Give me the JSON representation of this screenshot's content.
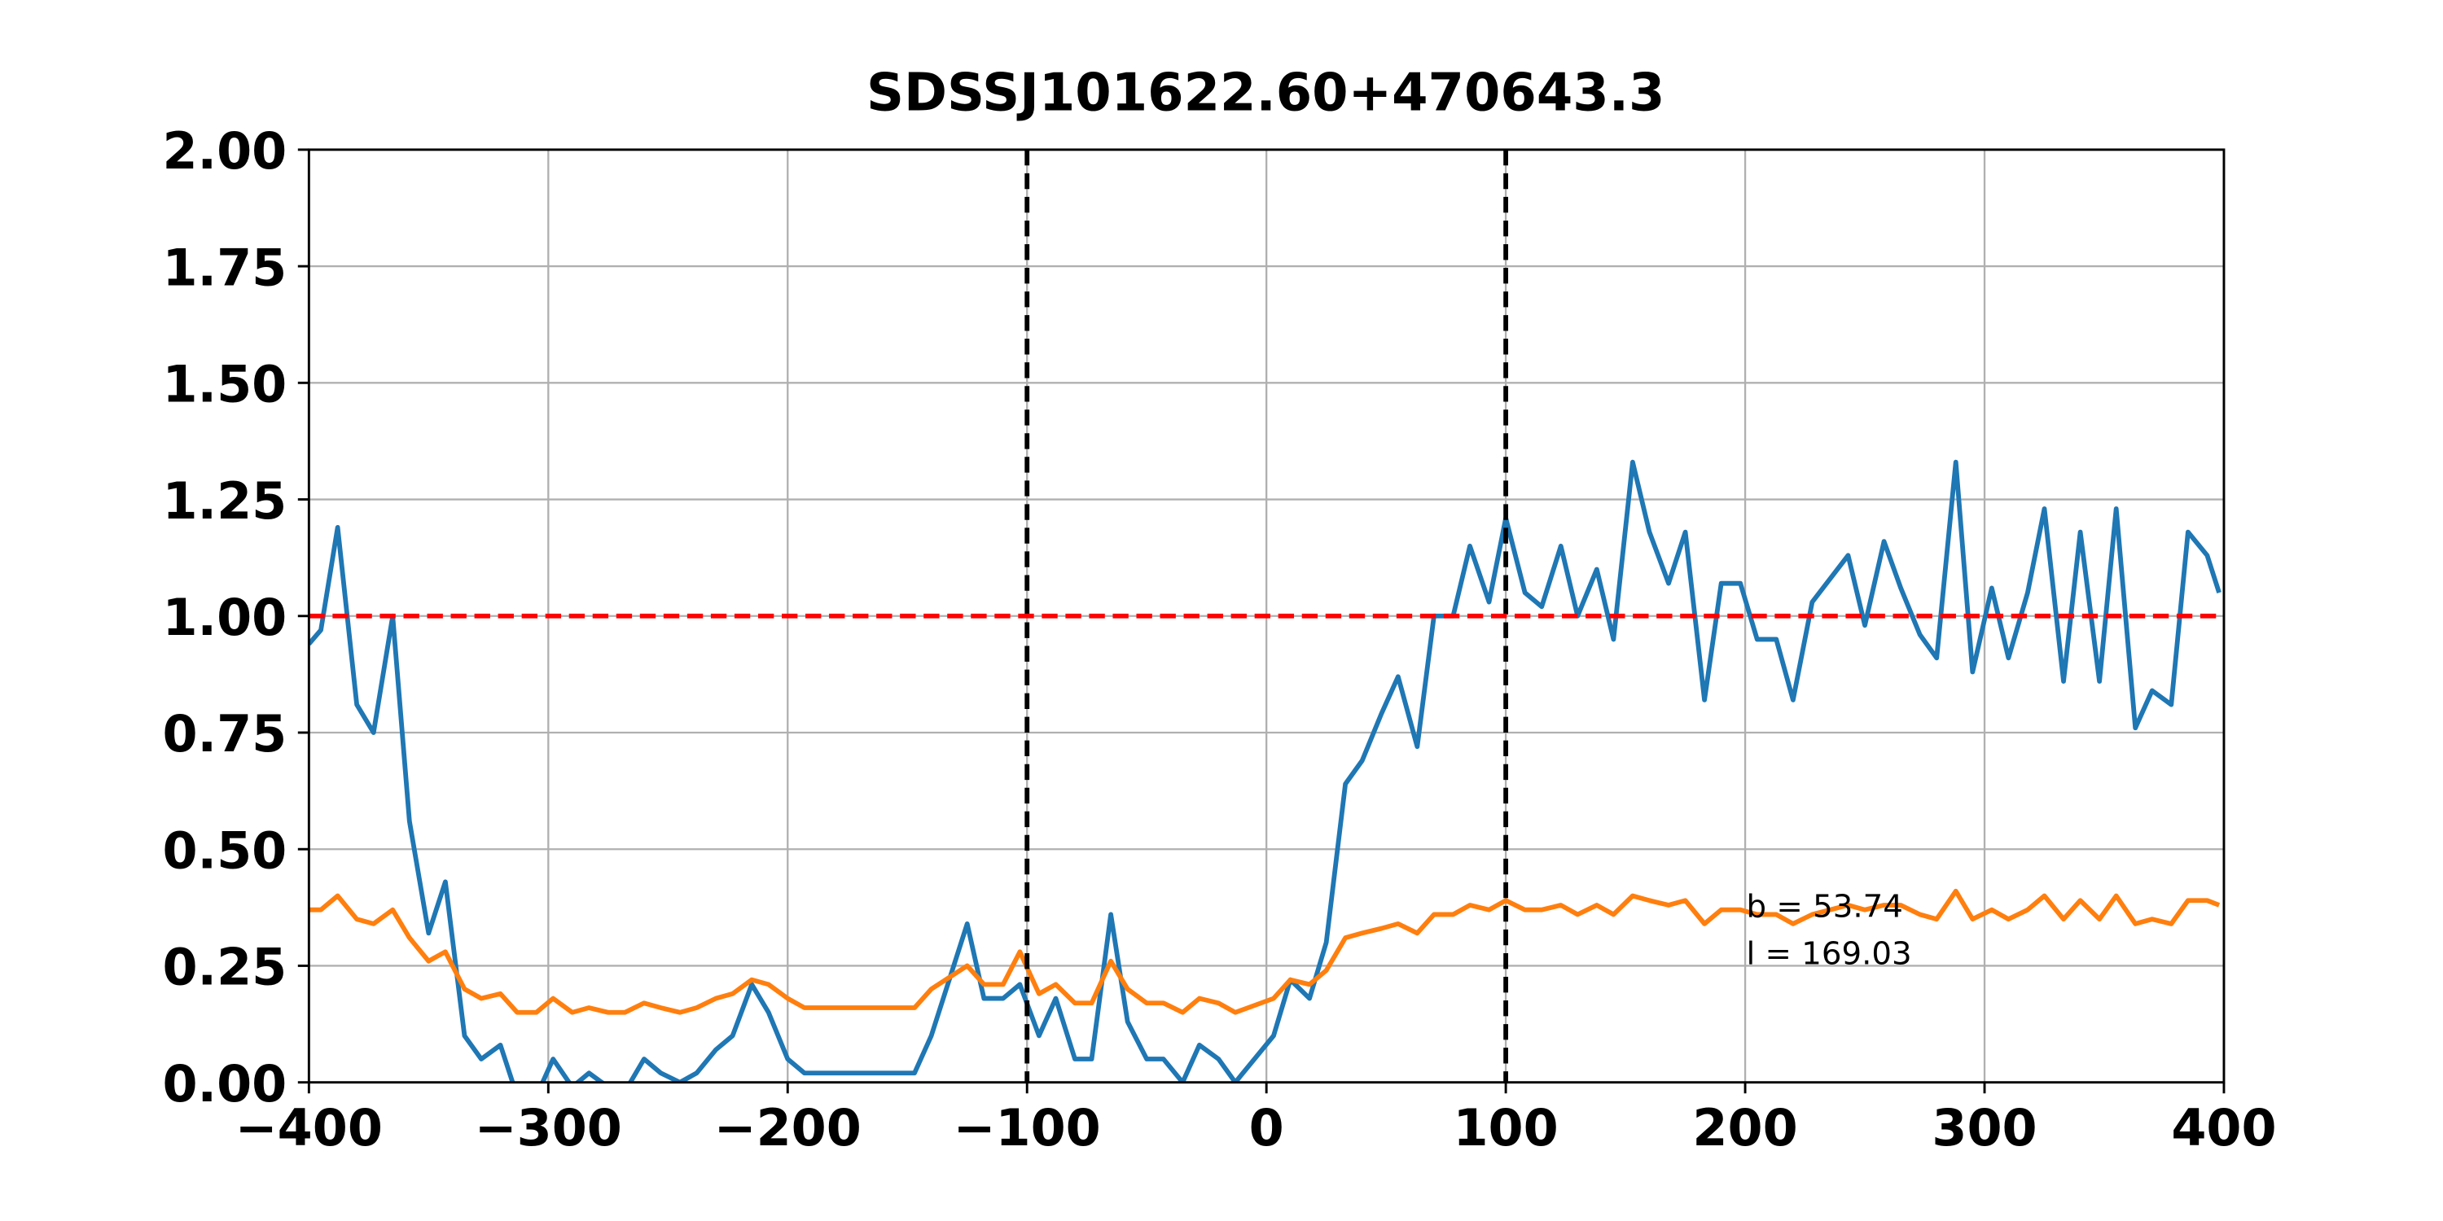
{
  "chart_data": {
    "type": "line",
    "title": "SDSSJ101622.60+470643.3",
    "x": [
      -400,
      -395,
      -388,
      -380,
      -373,
      -365,
      -358,
      -350,
      -343,
      -335,
      -328,
      -320,
      -313,
      -305,
      -298,
      -290,
      -283,
      -275,
      -268,
      -260,
      -253,
      -245,
      -238,
      -230,
      -223,
      -215,
      -208,
      -200,
      -193,
      -147,
      -140,
      -125,
      -118,
      -110,
      -103,
      -95,
      -88,
      -80,
      -73,
      -65,
      -58,
      -50,
      -43,
      -35,
      -28,
      -20,
      -13,
      3,
      10,
      18,
      25,
      33,
      40,
      48,
      55,
      63,
      70,
      78,
      85,
      93,
      100,
      108,
      115,
      123,
      130,
      138,
      145,
      153,
      160,
      168,
      175,
      183,
      190,
      198,
      205,
      213,
      220,
      228,
      243,
      250,
      258,
      265,
      273,
      280,
      288,
      295,
      303,
      310,
      318,
      325,
      333,
      340,
      348,
      355,
      363,
      370,
      378,
      385,
      393,
      398
    ],
    "series": [
      {
        "color": "#1f77b4",
        "values": [
          0.94,
          0.97,
          1.19,
          0.81,
          0.75,
          1.0,
          0.56,
          0.32,
          0.43,
          0.1,
          0.05,
          0.08,
          -0.03,
          -0.03,
          0.05,
          -0.01,
          0.02,
          -0.01,
          -0.02,
          0.05,
          0.02,
          0.0,
          0.02,
          0.07,
          0.1,
          0.21,
          0.15,
          0.05,
          0.02,
          0.02,
          0.1,
          0.34,
          0.18,
          0.18,
          0.21,
          0.1,
          0.18,
          0.05,
          0.05,
          0.36,
          0.13,
          0.05,
          0.05,
          0.0,
          0.08,
          0.05,
          0.0,
          0.1,
          0.22,
          0.18,
          0.3,
          0.64,
          0.69,
          0.79,
          0.87,
          0.72,
          1.0,
          1.0,
          1.15,
          1.03,
          1.21,
          1.05,
          1.02,
          1.15,
          1.0,
          1.1,
          0.95,
          1.33,
          1.18,
          1.07,
          1.18,
          0.82,
          1.07,
          1.07,
          0.95,
          0.95,
          0.82,
          1.03,
          1.13,
          0.98,
          1.16,
          1.06,
          0.96,
          0.91,
          1.33,
          0.88,
          1.06,
          0.91,
          1.05,
          1.23,
          0.86,
          1.18,
          0.86,
          1.23,
          0.76,
          0.84,
          0.81,
          1.18,
          1.13,
          1.05
        ]
      },
      {
        "color": "#ff7f0e",
        "values": [
          0.37,
          0.37,
          0.4,
          0.35,
          0.34,
          0.37,
          0.31,
          0.26,
          0.28,
          0.2,
          0.18,
          0.19,
          0.15,
          0.15,
          0.18,
          0.15,
          0.16,
          0.15,
          0.15,
          0.17,
          0.16,
          0.15,
          0.16,
          0.18,
          0.19,
          0.22,
          0.21,
          0.18,
          0.16,
          0.16,
          0.2,
          0.25,
          0.21,
          0.21,
          0.28,
          0.19,
          0.21,
          0.17,
          0.17,
          0.26,
          0.2,
          0.17,
          0.17,
          0.15,
          0.18,
          0.17,
          0.15,
          0.18,
          0.22,
          0.21,
          0.24,
          0.31,
          0.32,
          0.33,
          0.34,
          0.32,
          0.36,
          0.36,
          0.38,
          0.37,
          0.39,
          0.37,
          0.37,
          0.38,
          0.36,
          0.38,
          0.36,
          0.4,
          0.39,
          0.38,
          0.39,
          0.34,
          0.37,
          0.37,
          0.36,
          0.36,
          0.34,
          0.36,
          0.38,
          0.37,
          0.38,
          0.38,
          0.36,
          0.35,
          0.41,
          0.35,
          0.37,
          0.35,
          0.37,
          0.4,
          0.35,
          0.39,
          0.35,
          0.4,
          0.34,
          0.35,
          0.34,
          0.39,
          0.39,
          0.38
        ]
      }
    ],
    "xlim": [
      -400,
      400
    ],
    "xticks": [
      {
        "value": -400,
        "label": "−400"
      },
      {
        "value": -300,
        "label": "−300"
      },
      {
        "value": -200,
        "label": "−200"
      },
      {
        "value": -100,
        "label": "−100"
      },
      0,
      100,
      200,
      300,
      400
    ],
    "ylim": [
      0,
      2
    ],
    "yticks": [
      {
        "value": 0,
        "label": "0.00"
      },
      {
        "value": 0.25,
        "label": "0.25"
      },
      {
        "value": 0.5,
        "label": "0.50"
      },
      {
        "value": 0.75,
        "label": "0.75"
      },
      {
        "value": 1,
        "label": "1.00"
      },
      {
        "value": 1.25,
        "label": "1.25"
      },
      {
        "value": 1.5,
        "label": "1.50"
      },
      {
        "value": 1.75,
        "label": "1.75"
      },
      {
        "value": 2,
        "label": "2.00"
      }
    ],
    "grid": true,
    "vlines": [
      -100,
      100
    ],
    "vline_color": "#000000",
    "hline": 1,
    "hline_color": "#ff0000",
    "annotations": [
      "b = 53.74",
      "l = 169.03"
    ]
  }
}
